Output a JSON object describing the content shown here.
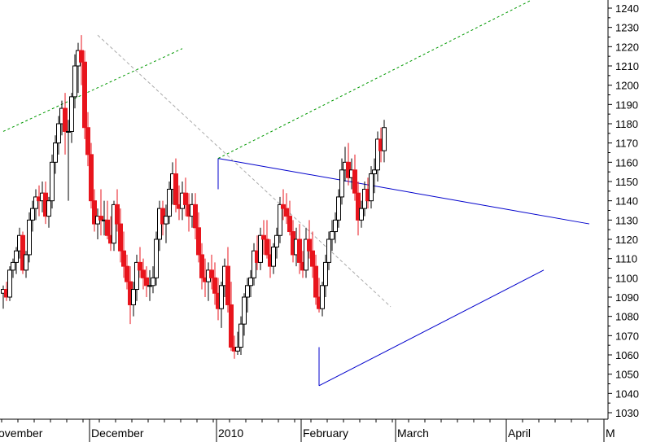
{
  "chart_data": {
    "type": "candlestick",
    "title": "",
    "xlabel": "",
    "ylabel": "",
    "ylim": [
      1025,
      1245
    ],
    "y_ticks": [
      1030,
      1040,
      1050,
      1060,
      1070,
      1080,
      1090,
      1100,
      1110,
      1120,
      1130,
      1140,
      1150,
      1160,
      1170,
      1180,
      1190,
      1200,
      1210,
      1220,
      1230,
      1240
    ],
    "x_month_labels": [
      {
        "label": "ovember",
        "index": 0
      },
      {
        "label": "December",
        "index": 27
      },
      {
        "label": "2010",
        "index": 66
      },
      {
        "label": "February",
        "index": 92
      },
      {
        "label": "March",
        "index": 121
      },
      {
        "label": "April",
        "index": 155
      },
      {
        "label": "M",
        "index": 185
      }
    ],
    "colors": {
      "up_fill": "#ffffff",
      "down_fill": "#e8141c",
      "outline": "#000000",
      "trendline": "#0000cc",
      "channel": "#009900",
      "projection": "#aaaaaa"
    },
    "candles": [
      [
        1092,
        1096,
        1084,
        1094
      ],
      [
        1094,
        1098,
        1088,
        1090
      ],
      [
        1090,
        1106,
        1088,
        1104
      ],
      [
        1104,
        1110,
        1100,
        1108
      ],
      [
        1108,
        1116,
        1102,
        1114
      ],
      [
        1114,
        1126,
        1110,
        1122
      ],
      [
        1122,
        1124,
        1102,
        1104
      ],
      [
        1104,
        1114,
        1100,
        1112
      ],
      [
        1112,
        1134,
        1108,
        1130
      ],
      [
        1130,
        1140,
        1124,
        1136
      ],
      [
        1136,
        1146,
        1130,
        1142
      ],
      [
        1142,
        1148,
        1132,
        1140
      ],
      [
        1140,
        1150,
        1134,
        1144
      ],
      [
        1144,
        1150,
        1128,
        1132
      ],
      [
        1132,
        1142,
        1126,
        1140
      ],
      [
        1140,
        1164,
        1136,
        1160
      ],
      [
        1160,
        1174,
        1154,
        1170
      ],
      [
        1170,
        1184,
        1164,
        1180
      ],
      [
        1180,
        1192,
        1174,
        1188
      ],
      [
        1188,
        1196,
        1164,
        1176
      ],
      [
        1176,
        1182,
        1140,
        1176
      ],
      [
        1176,
        1196,
        1170,
        1194
      ],
      [
        1194,
        1216,
        1188,
        1210
      ],
      [
        1210,
        1222,
        1196,
        1218
      ],
      [
        1218,
        1226,
        1200,
        1212
      ],
      [
        1212,
        1218,
        1172,
        1178
      ],
      [
        1178,
        1186,
        1158,
        1164
      ],
      [
        1164,
        1170,
        1136,
        1140
      ],
      [
        1140,
        1146,
        1124,
        1128
      ],
      [
        1128,
        1136,
        1120,
        1132
      ],
      [
        1132,
        1146,
        1122,
        1130
      ],
      [
        1130,
        1140,
        1122,
        1130
      ],
      [
        1130,
        1140,
        1120,
        1122
      ],
      [
        1122,
        1132,
        1114,
        1118
      ],
      [
        1118,
        1140,
        1114,
        1138
      ],
      [
        1138,
        1146,
        1124,
        1128
      ],
      [
        1128,
        1136,
        1108,
        1114
      ],
      [
        1114,
        1124,
        1100,
        1106
      ],
      [
        1106,
        1112,
        1094,
        1098
      ],
      [
        1098,
        1106,
        1076,
        1086
      ],
      [
        1086,
        1098,
        1080,
        1094
      ],
      [
        1094,
        1112,
        1088,
        1108
      ],
      [
        1108,
        1116,
        1100,
        1104
      ],
      [
        1104,
        1110,
        1094,
        1100
      ],
      [
        1100,
        1106,
        1090,
        1096
      ],
      [
        1096,
        1104,
        1088,
        1096
      ],
      [
        1096,
        1106,
        1092,
        1100
      ],
      [
        1100,
        1124,
        1096,
        1120
      ],
      [
        1120,
        1140,
        1114,
        1136
      ],
      [
        1136,
        1140,
        1122,
        1128
      ],
      [
        1128,
        1138,
        1118,
        1132
      ],
      [
        1132,
        1150,
        1128,
        1146
      ],
      [
        1146,
        1160,
        1138,
        1154
      ],
      [
        1154,
        1162,
        1134,
        1138
      ],
      [
        1138,
        1148,
        1130,
        1136
      ],
      [
        1136,
        1150,
        1130,
        1144
      ],
      [
        1144,
        1152,
        1132,
        1138
      ],
      [
        1138,
        1144,
        1124,
        1132
      ],
      [
        1132,
        1144,
        1126,
        1138
      ],
      [
        1138,
        1144,
        1120,
        1126
      ],
      [
        1126,
        1134,
        1108,
        1112
      ],
      [
        1112,
        1118,
        1094,
        1100
      ],
      [
        1100,
        1110,
        1090,
        1098
      ],
      [
        1098,
        1108,
        1088,
        1104
      ],
      [
        1104,
        1112,
        1094,
        1100
      ],
      [
        1100,
        1108,
        1086,
        1092
      ],
      [
        1092,
        1100,
        1078,
        1084
      ],
      [
        1084,
        1098,
        1074,
        1096
      ],
      [
        1096,
        1110,
        1090,
        1106
      ],
      [
        1106,
        1116,
        1082,
        1086
      ],
      [
        1086,
        1098,
        1062,
        1064
      ],
      [
        1064,
        1070,
        1058,
        1062
      ],
      [
        1062,
        1072,
        1060,
        1064
      ],
      [
        1064,
        1080,
        1060,
        1076
      ],
      [
        1076,
        1092,
        1070,
        1090
      ],
      [
        1090,
        1100,
        1082,
        1096
      ],
      [
        1096,
        1104,
        1090,
        1100
      ],
      [
        1100,
        1118,
        1096,
        1114
      ],
      [
        1114,
        1122,
        1104,
        1108
      ],
      [
        1108,
        1126,
        1104,
        1122
      ],
      [
        1122,
        1130,
        1112,
        1120
      ],
      [
        1120,
        1130,
        1110,
        1112
      ],
      [
        1112,
        1120,
        1100,
        1106
      ],
      [
        1106,
        1118,
        1102,
        1116
      ],
      [
        1116,
        1126,
        1110,
        1122
      ],
      [
        1122,
        1142,
        1118,
        1138
      ],
      [
        1138,
        1146,
        1130,
        1136
      ],
      [
        1136,
        1144,
        1128,
        1132
      ],
      [
        1132,
        1140,
        1122,
        1124
      ],
      [
        1124,
        1130,
        1108,
        1112
      ],
      [
        1112,
        1126,
        1106,
        1120
      ],
      [
        1120,
        1128,
        1102,
        1108
      ],
      [
        1108,
        1114,
        1100,
        1104
      ],
      [
        1104,
        1126,
        1100,
        1120
      ],
      [
        1120,
        1130,
        1110,
        1114
      ],
      [
        1114,
        1124,
        1100,
        1106
      ],
      [
        1106,
        1112,
        1086,
        1090
      ],
      [
        1090,
        1100,
        1082,
        1084
      ],
      [
        1084,
        1098,
        1080,
        1096
      ],
      [
        1096,
        1112,
        1090,
        1108
      ],
      [
        1108,
        1124,
        1104,
        1120
      ],
      [
        1120,
        1130,
        1114,
        1124
      ],
      [
        1124,
        1134,
        1118,
        1130
      ],
      [
        1130,
        1146,
        1126,
        1142
      ],
      [
        1142,
        1162,
        1138,
        1156
      ],
      [
        1156,
        1168,
        1150,
        1160
      ],
      [
        1160,
        1170,
        1148,
        1152
      ],
      [
        1152,
        1162,
        1146,
        1156
      ],
      [
        1156,
        1164,
        1140,
        1144
      ],
      [
        1144,
        1150,
        1122,
        1130
      ],
      [
        1130,
        1140,
        1126,
        1136
      ],
      [
        1136,
        1150,
        1132,
        1146
      ],
      [
        1146,
        1152,
        1136,
        1140
      ],
      [
        1140,
        1158,
        1136,
        1154
      ],
      [
        1154,
        1162,
        1144,
        1156
      ],
      [
        1156,
        1176,
        1150,
        1172
      ],
      [
        1172,
        1178,
        1160,
        1166
      ],
      [
        1166,
        1182,
        1160,
        1178
      ]
    ],
    "annotations": [
      {
        "type": "trendline",
        "color": "blue",
        "from": [
          66,
          1162
        ],
        "to": [
          180,
          1128
        ]
      },
      {
        "type": "trendline",
        "color": "blue",
        "from": [
          97,
          1044
        ],
        "to": [
          166,
          1104
        ]
      },
      {
        "type": "trendline",
        "color": "blue",
        "from": [
          97,
          1044
        ],
        "to": [
          97,
          1064
        ]
      },
      {
        "type": "trendline",
        "color": "blue",
        "from": [
          66,
          1162
        ],
        "to": [
          66,
          1146
        ]
      },
      {
        "type": "channel",
        "color": "green",
        "from": [
          0,
          1176
        ],
        "to": [
          55,
          1219
        ]
      },
      {
        "type": "channel",
        "color": "green",
        "from": [
          66,
          1162
        ],
        "to": [
          162,
          1244
        ]
      },
      {
        "type": "projection",
        "color": "gray",
        "from": [
          29,
          1226
        ],
        "to": [
          119,
          1085
        ]
      }
    ]
  }
}
